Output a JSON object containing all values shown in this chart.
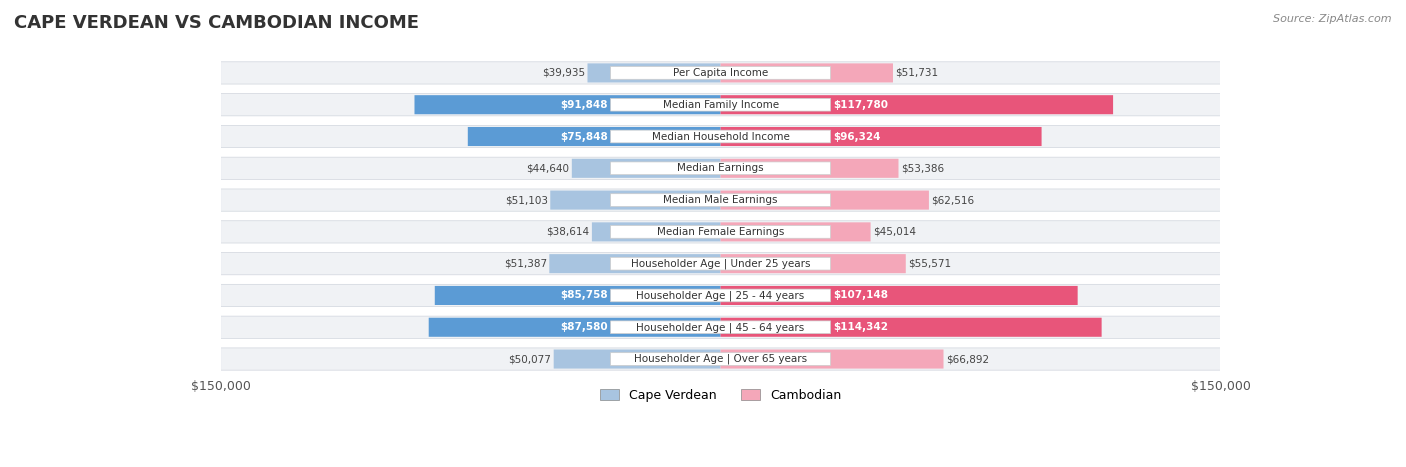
{
  "title": "CAPE VERDEAN VS CAMBODIAN INCOME",
  "source": "Source: ZipAtlas.com",
  "categories": [
    "Per Capita Income",
    "Median Family Income",
    "Median Household Income",
    "Median Earnings",
    "Median Male Earnings",
    "Median Female Earnings",
    "Householder Age | Under 25 years",
    "Householder Age | 25 - 44 years",
    "Householder Age | 45 - 64 years",
    "Householder Age | Over 65 years"
  ],
  "cape_verdean": [
    39935,
    91848,
    75848,
    44640,
    51103,
    38614,
    51387,
    85758,
    87580,
    50077
  ],
  "cambodian": [
    51731,
    117780,
    96324,
    53386,
    62516,
    45014,
    55571,
    107148,
    114342,
    66892
  ],
  "max_val": 150000,
  "cape_verdean_color_light": "#a8c4e0",
  "cape_verdean_color_dark": "#5b9bd5",
  "cambodian_color_light": "#f4a7b9",
  "cambodian_color_dark": "#e8557a",
  "label_color_light": "#555555",
  "label_color_dark": "#ffffff",
  "bg_row_color": "#f0f0f0",
  "center_label_bg": "#ffffff",
  "legend_cape_verdean": "Cape Verdean",
  "legend_cambodian": "Cambodian"
}
